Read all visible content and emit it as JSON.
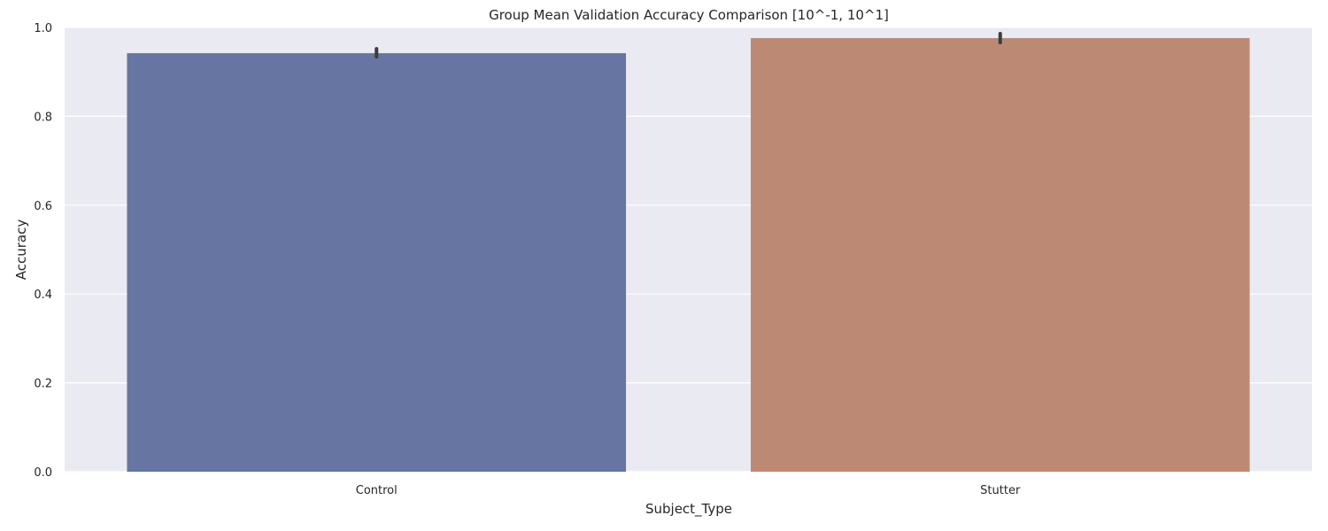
{
  "chart_data": {
    "type": "bar",
    "title": "Group Mean Validation Accuracy Comparison [10^-1, 10^1]",
    "xlabel": "Subject_Type",
    "ylabel": "Accuracy",
    "categories": [
      "Control",
      "Stutter"
    ],
    "values": [
      0.942,
      0.976
    ],
    "error_bars": [
      [
        0.934,
        0.952
      ],
      [
        0.966,
        0.986
      ]
    ],
    "colors": [
      "#6775a3",
      "#bc8a74"
    ],
    "ylim": [
      0,
      1.0
    ],
    "yticks": [
      "0.0",
      "0.2",
      "0.4",
      "0.6",
      "0.8",
      "1.0"
    ],
    "grid": true,
    "background": "#eaeaf2"
  }
}
